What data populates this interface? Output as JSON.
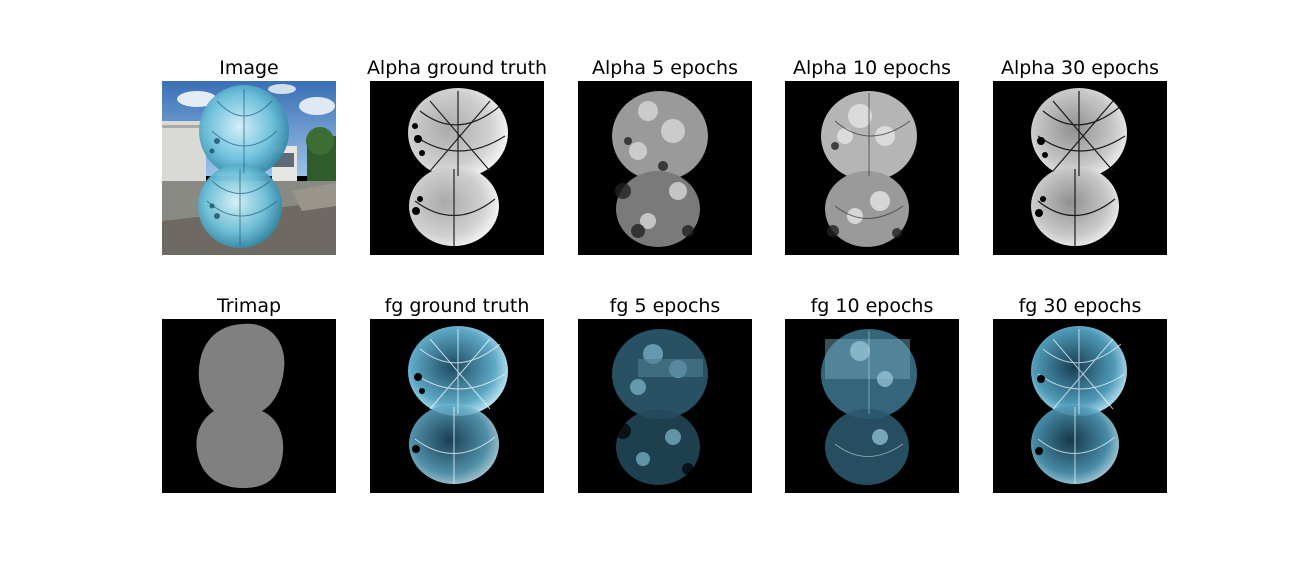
{
  "rows": [
    {
      "titles": [
        "Image",
        "Alpha ground truth",
        "Alpha 5 epochs",
        "Alpha 10 epochs",
        "Alpha 30 epochs"
      ]
    },
    {
      "titles": [
        "Trimap",
        "fg ground truth",
        "fg 5 epochs",
        "fg 10 epochs",
        "fg 30 epochs"
      ]
    }
  ],
  "colors": {
    "background": "#ffffff",
    "panel_background": "#000000",
    "trimap_gray": "#808080",
    "glass_tint": "#6fc3dc",
    "sky": "#6ea6d9"
  }
}
